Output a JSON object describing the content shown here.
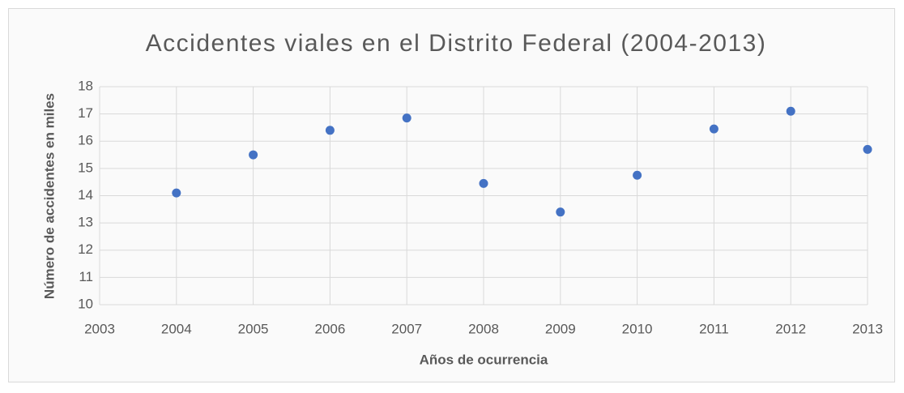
{
  "chart_data": {
    "type": "scatter",
    "title": "Accidentes viales en el Distrito Federal (2004-2013)",
    "x_label": "Años de ocurrencia",
    "y_label": "Número de accidentes en miles",
    "x": [
      2004,
      2005,
      2006,
      2007,
      2008,
      2009,
      2010,
      2011,
      2012,
      2013
    ],
    "values": [
      14.1,
      15.5,
      16.4,
      16.85,
      14.45,
      13.4,
      14.75,
      16.45,
      17.1,
      15.7
    ],
    "color": "#4472c4",
    "xlim": [
      2003,
      2013
    ],
    "xticks": [
      2003,
      2004,
      2005,
      2006,
      2007,
      2008,
      2009,
      2010,
      2011,
      2012,
      2013
    ],
    "ylim": [
      10,
      18
    ],
    "yticks": [
      10,
      11,
      12,
      13,
      14,
      15,
      16,
      17,
      18
    ],
    "grid": true
  }
}
